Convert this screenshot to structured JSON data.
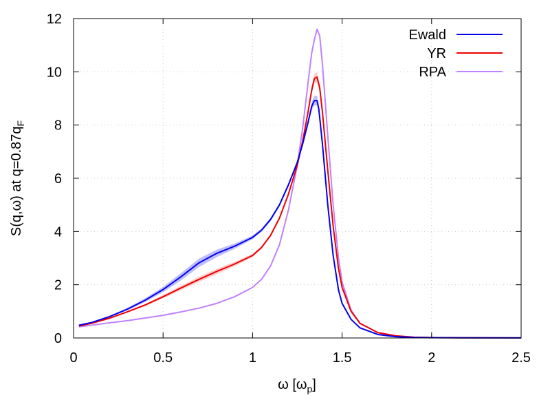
{
  "chart_data": {
    "type": "line",
    "title": "",
    "xlabel": "ω [ω",
    "xlabel_sub": "p",
    "xlabel_close": "]",
    "ylabel": "S(q,ω) at q=0.87q",
    "ylabel_sub": "F",
    "xlim": [
      0,
      2.5
    ],
    "ylim": [
      0,
      12
    ],
    "xticks": [
      0,
      0.5,
      1,
      1.5,
      2,
      2.5
    ],
    "xtick_labels": [
      "0",
      "0.5",
      "1",
      "1.5",
      "2",
      "2.5"
    ],
    "yticks": [
      0,
      2,
      4,
      6,
      8,
      10,
      12
    ],
    "ytick_labels": [
      "0",
      "2",
      "4",
      "6",
      "8",
      "10",
      "12"
    ],
    "grid": true,
    "legend_position": "top-right",
    "series": [
      {
        "name": "Ewald",
        "color": "#0000ee",
        "band_color": "#8080ff",
        "x": [
          0.03,
          0.1,
          0.2,
          0.3,
          0.4,
          0.5,
          0.6,
          0.7,
          0.8,
          0.9,
          1.0,
          1.05,
          1.1,
          1.15,
          1.2,
          1.25,
          1.28,
          1.31,
          1.33,
          1.345,
          1.36,
          1.37,
          1.39,
          1.42,
          1.45,
          1.48,
          1.5,
          1.55,
          1.6,
          1.7,
          1.8,
          1.9,
          2.0,
          2.2,
          2.5
        ],
        "y": [
          0.48,
          0.58,
          0.8,
          1.08,
          1.42,
          1.82,
          2.3,
          2.82,
          3.18,
          3.45,
          3.78,
          4.05,
          4.45,
          5.0,
          5.75,
          6.6,
          7.3,
          8.1,
          8.7,
          8.92,
          8.92,
          8.6,
          7.3,
          5.0,
          3.1,
          1.8,
          1.3,
          0.7,
          0.38,
          0.13,
          0.05,
          0.02,
          0.01,
          0.005,
          0.003
        ],
        "band": [
          0.02,
          0.02,
          0.03,
          0.05,
          0.07,
          0.1,
          0.14,
          0.16,
          0.14,
          0.1,
          0.07,
          0.06,
          0.06,
          0.06,
          0.07,
          0.08,
          0.1,
          0.12,
          0.15,
          0.18,
          0.18,
          0.15,
          0.12,
          0.08,
          0.05,
          0.03,
          0.02,
          0.01,
          0.01,
          0.005,
          0.003,
          0.002,
          0.001,
          0.001,
          0.001
        ]
      },
      {
        "name": "YR",
        "color": "#ee0000",
        "band_color": "#ff9a9a",
        "x": [
          0.03,
          0.1,
          0.2,
          0.3,
          0.4,
          0.5,
          0.6,
          0.7,
          0.8,
          0.9,
          1.0,
          1.05,
          1.1,
          1.15,
          1.2,
          1.25,
          1.28,
          1.31,
          1.33,
          1.345,
          1.36,
          1.375,
          1.39,
          1.42,
          1.45,
          1.48,
          1.5,
          1.55,
          1.6,
          1.7,
          1.8,
          1.9,
          2.0,
          2.2,
          2.5
        ],
        "y": [
          0.45,
          0.55,
          0.74,
          0.98,
          1.24,
          1.55,
          1.88,
          2.2,
          2.5,
          2.78,
          3.1,
          3.4,
          3.85,
          4.5,
          5.4,
          6.5,
          7.4,
          8.5,
          9.3,
          9.75,
          9.8,
          9.4,
          8.5,
          6.3,
          4.2,
          2.6,
          1.9,
          1.0,
          0.55,
          0.2,
          0.08,
          0.03,
          0.015,
          0.005,
          0.003
        ],
        "band": [
          0.01,
          0.01,
          0.02,
          0.03,
          0.04,
          0.06,
          0.08,
          0.1,
          0.1,
          0.08,
          0.06,
          0.05,
          0.05,
          0.06,
          0.07,
          0.08,
          0.1,
          0.12,
          0.15,
          0.18,
          0.18,
          0.15,
          0.12,
          0.08,
          0.05,
          0.03,
          0.02,
          0.01,
          0.01,
          0.005,
          0.003,
          0.002,
          0.001,
          0.001,
          0.001
        ]
      },
      {
        "name": "RPA",
        "color": "#c080ff",
        "x": [
          0.03,
          0.1,
          0.2,
          0.3,
          0.4,
          0.5,
          0.6,
          0.7,
          0.8,
          0.9,
          1.0,
          1.05,
          1.1,
          1.15,
          1.2,
          1.25,
          1.28,
          1.31,
          1.33,
          1.345,
          1.36,
          1.375,
          1.39,
          1.42,
          1.45,
          1.48,
          1.5,
          1.55,
          1.6,
          1.7,
          1.8,
          1.9,
          2.0,
          2.2,
          2.5
        ],
        "y": [
          0.42,
          0.48,
          0.57,
          0.65,
          0.75,
          0.85,
          0.98,
          1.12,
          1.3,
          1.55,
          1.9,
          2.2,
          2.7,
          3.5,
          4.8,
          6.5,
          7.9,
          9.6,
          10.7,
          11.2,
          11.6,
          11.35,
          10.3,
          7.6,
          5.0,
          3.0,
          2.1,
          1.05,
          0.55,
          0.2,
          0.08,
          0.03,
          0.015,
          0.005,
          0.003
        ]
      }
    ]
  }
}
